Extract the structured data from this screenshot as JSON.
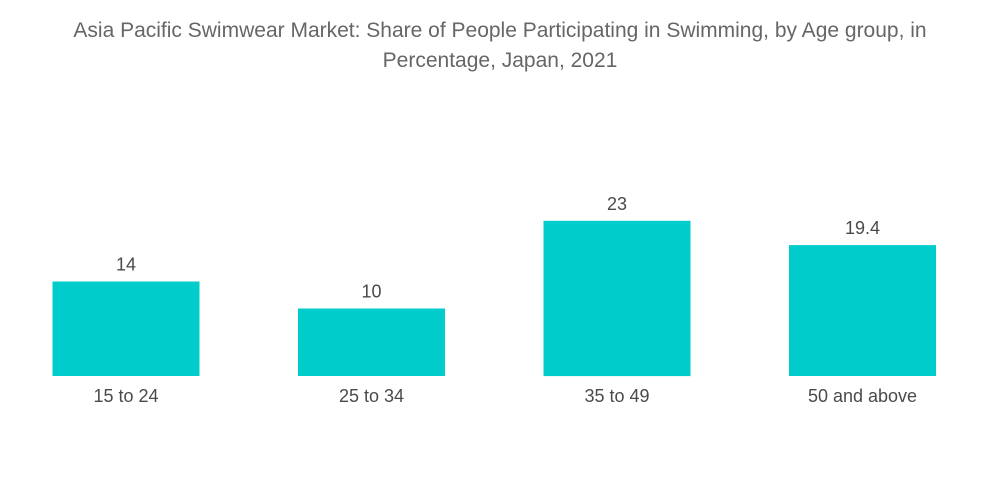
{
  "chart_data": {
    "type": "bar",
    "title_lines": [
      "Asia Pacific Swimwear Market: Share of People Participating in Swimming, by Age group, in",
      "Percentage, Japan, 2021"
    ],
    "categories": [
      "15 to 24",
      "25 to 34",
      "35 to 49",
      "50 and above"
    ],
    "values": [
      14,
      10,
      23,
      19.4
    ],
    "value_labels": [
      "14",
      "10",
      "23",
      "19.4"
    ],
    "xlabel": "",
    "ylabel": "",
    "ylim": [
      0,
      30
    ],
    "grid": false,
    "legend": "none",
    "bar_color": "#00cccc"
  }
}
